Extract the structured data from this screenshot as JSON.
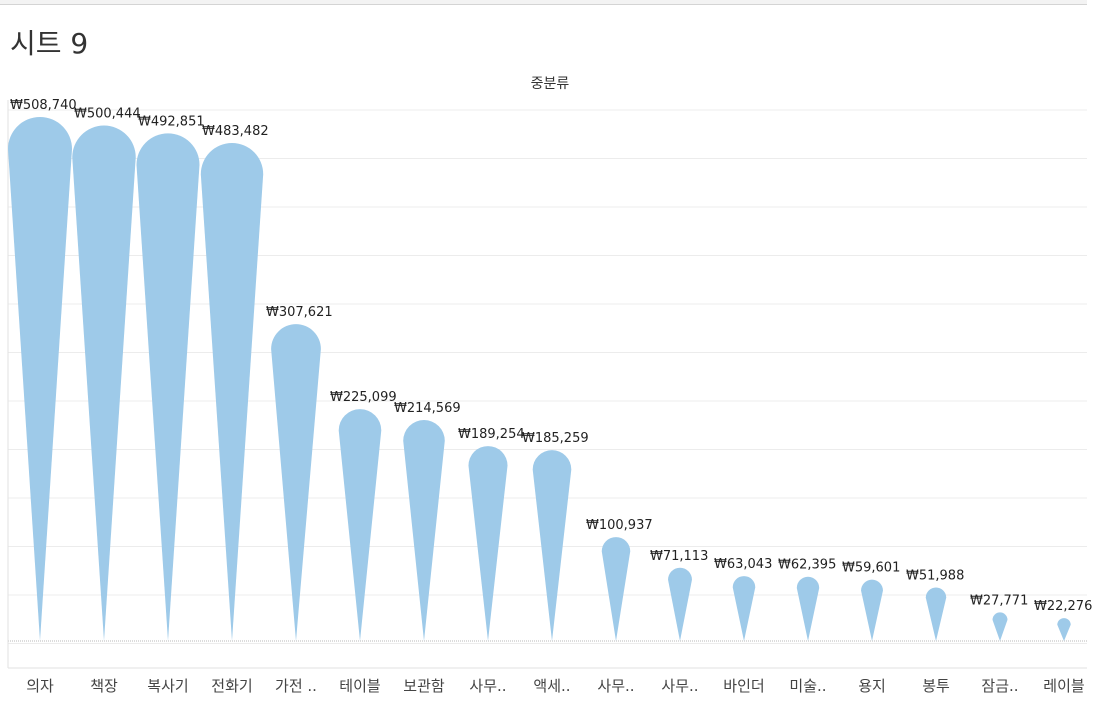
{
  "sheet_title": "시트 9",
  "chart_data": {
    "type": "bar",
    "mark": "teardrop",
    "column_header": "중분류",
    "categories": [
      "의자",
      "책장",
      "복사기",
      "전화기",
      "가전 ..",
      "테이블",
      "보관함",
      "사무..",
      "액세..",
      "사무..",
      "사무..",
      "바인더",
      "미술..",
      "용지",
      "봉투",
      "잠금..",
      "레이블"
    ],
    "values": [
      508740,
      500444,
      492851,
      483482,
      307621,
      225099,
      214569,
      189254,
      185259,
      100937,
      71113,
      63043,
      62395,
      59601,
      51988,
      27771,
      22276
    ],
    "value_labels": [
      "₩508,740",
      "₩500,444",
      "₩492,851",
      "₩483,482",
      "₩307,621",
      "₩225,099",
      "₩214,569",
      "₩189,254",
      "₩185,259",
      "₩100,937",
      "₩71,113",
      "₩63,043",
      "₩62,395",
      "₩59,601",
      "₩51,988",
      "₩27,771",
      "₩22,276"
    ],
    "color": "#9ecae9",
    "grid": true
  }
}
